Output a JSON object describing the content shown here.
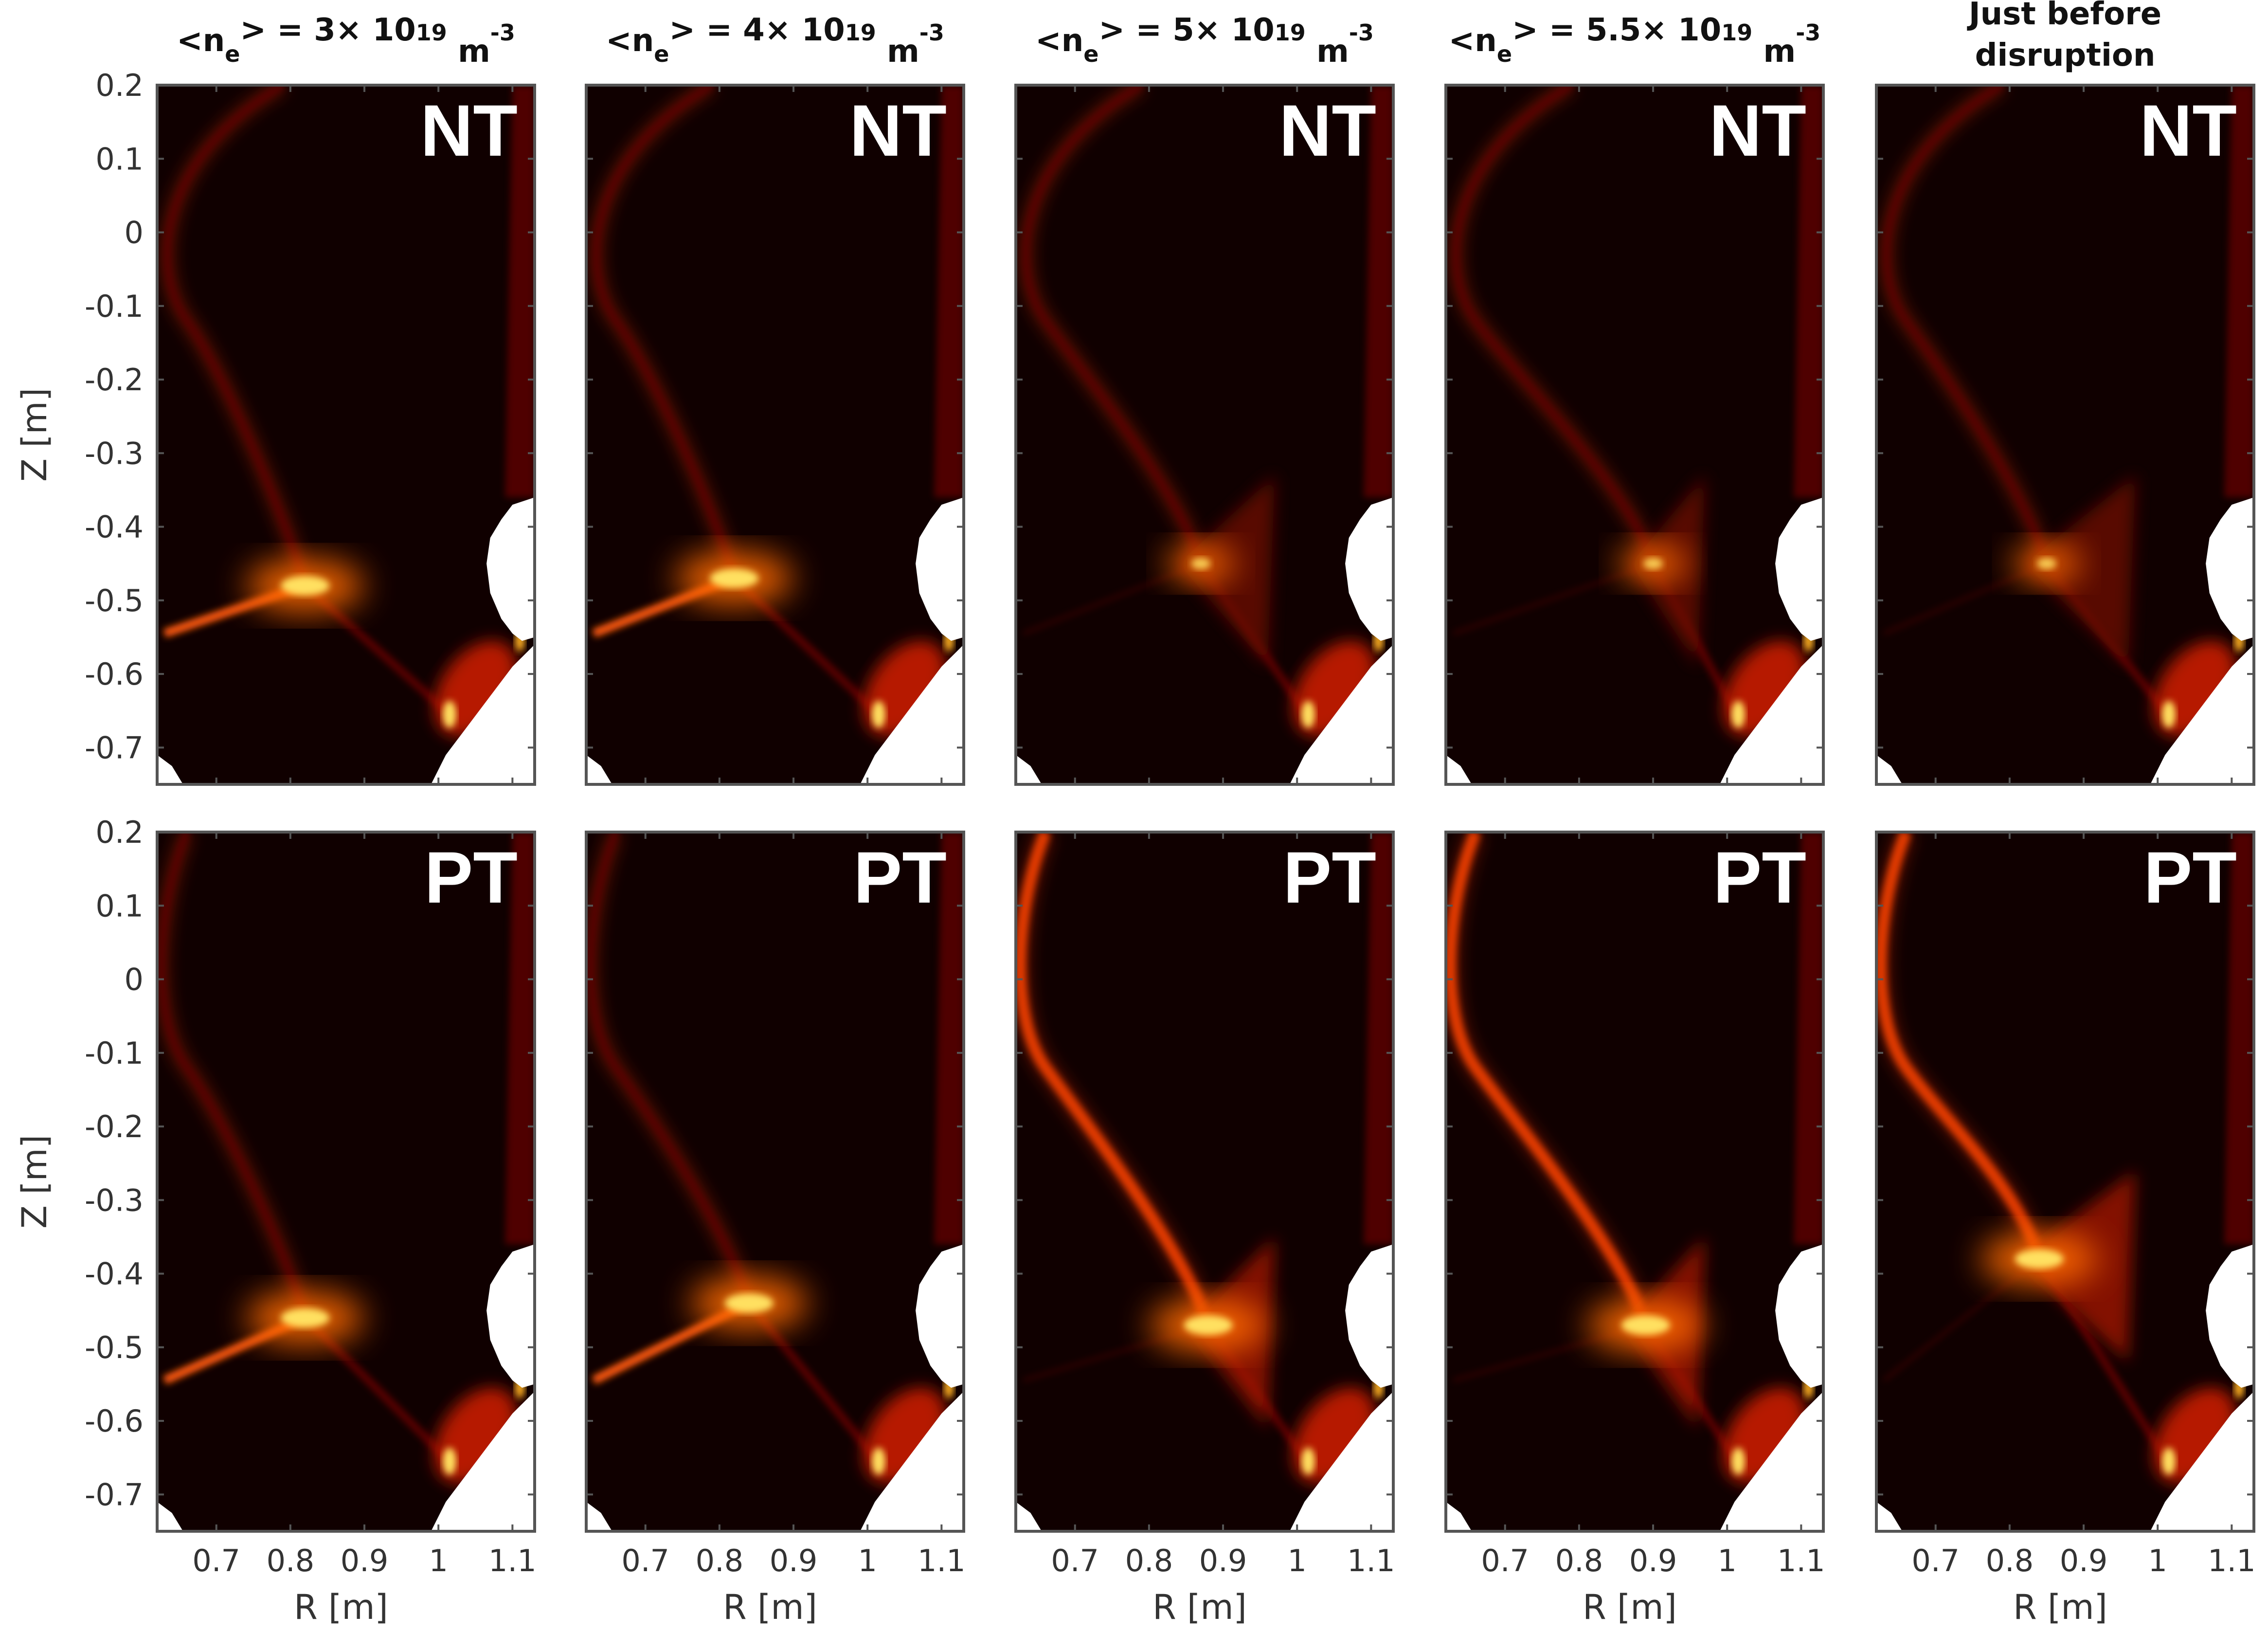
{
  "chart_data": {
    "type": "heatmap",
    "title": "",
    "colormap": "hot",
    "columns": [
      {
        "label": "<n_e> = 3× 10^19 m^-3",
        "parts": [
          "<n",
          "e",
          "> = 3× 10",
          "19",
          " m",
          "-3"
        ]
      },
      {
        "label": "<n_e> = 4× 10^19 m^-3",
        "parts": [
          "<n",
          "e",
          "> = 4× 10",
          "19",
          " m",
          "-3"
        ]
      },
      {
        "label": "<n_e> = 5× 10^19 m^-3",
        "parts": [
          "<n",
          "e",
          "> = 5× 10",
          "19",
          " m",
          "-3"
        ]
      },
      {
        "label": "<n_e> = 5.5× 10^19 m^-3",
        "parts": [
          "<n",
          "e",
          "> = 5.5× 10",
          "19",
          " m",
          "-3"
        ]
      },
      {
        "label": "Just before disruption",
        "lines": [
          "Just before",
          "disruption"
        ]
      }
    ],
    "rows": [
      {
        "tag": "NT",
        "ylabel": "Z [m]"
      },
      {
        "tag": "PT",
        "ylabel": "Z [m]"
      }
    ],
    "xlabel": "R [m]",
    "ylabel": "Z [m]",
    "xlim": [
      0.62,
      1.13
    ],
    "ylim": [
      -0.75,
      0.2
    ],
    "xticks": [
      0.7,
      0.8,
      0.9,
      1,
      1.1
    ],
    "xtick_labels": [
      "0.7",
      "0.8",
      "0.9",
      "1",
      "1.1"
    ],
    "yticks": [
      0.2,
      0.1,
      0,
      -0.1,
      -0.2,
      -0.3,
      -0.4,
      -0.5,
      -0.6,
      -0.7
    ],
    "ytick_labels": [
      "0.2",
      "0.1",
      "0",
      "-0.1",
      "-0.2",
      "-0.3",
      "-0.4",
      "-0.5",
      "-0.6",
      "-0.7"
    ],
    "x_point": {
      "NT": [
        [
          0.82,
          -0.48
        ],
        [
          0.82,
          -0.47
        ],
        [
          0.87,
          -0.45
        ],
        [
          0.9,
          -0.45
        ],
        [
          0.85,
          -0.45
        ]
      ],
      "PT": [
        [
          0.82,
          -0.46
        ],
        [
          0.84,
          -0.44
        ],
        [
          0.88,
          -0.47
        ],
        [
          0.89,
          -0.47
        ],
        [
          0.84,
          -0.38
        ]
      ]
    },
    "emission_level": "normalized 0–1, black (0) to white (1)"
  },
  "colors": {
    "background": "#100000",
    "low": "#5a0500",
    "mid": "#d02a00",
    "high": "#ffe060",
    "wall": "#ffffff",
    "frame": "#555555"
  }
}
